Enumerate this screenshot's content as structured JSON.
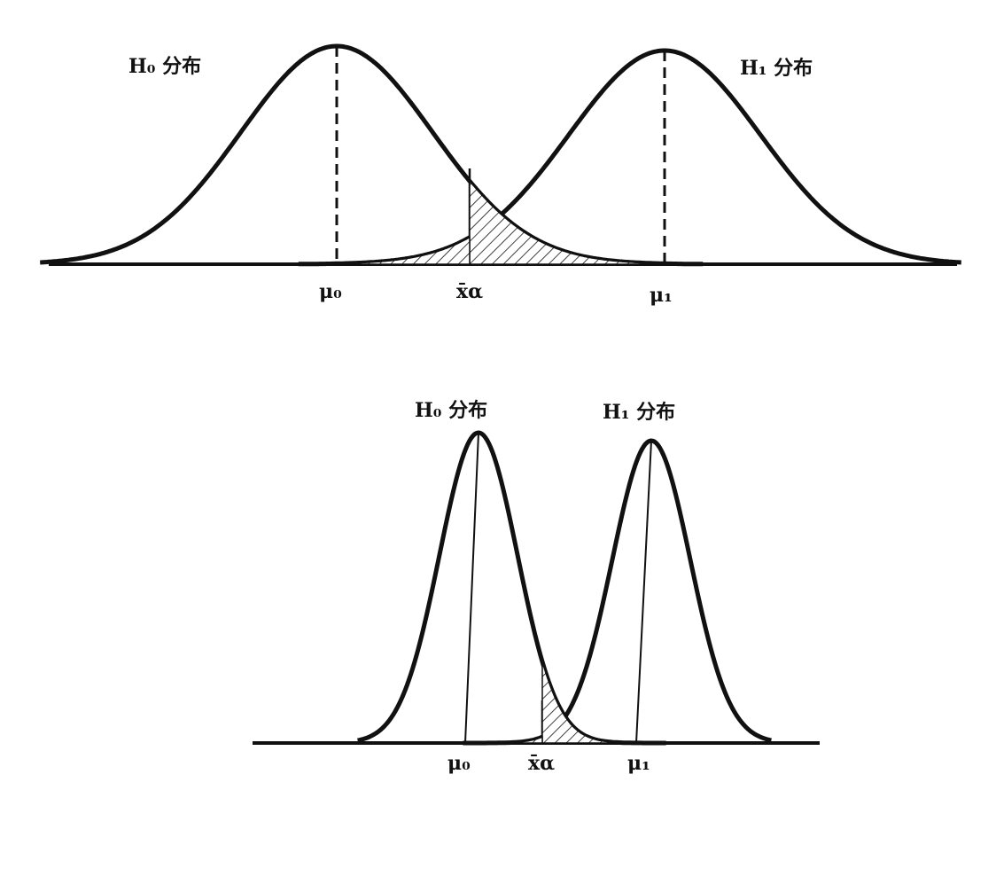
{
  "panels": [
    {
      "h0_label": "H₀ 分布",
      "h1_label": "H₁ 分布",
      "axis_labels": [
        "μ₀",
        "x̄α",
        "μ₁"
      ]
    },
    {
      "h0_label": "H₀ 分布",
      "h1_label": "H₁ 分布",
      "axis_labels": [
        "μ₀",
        "x̄α",
        "μ₁"
      ]
    }
  ]
}
